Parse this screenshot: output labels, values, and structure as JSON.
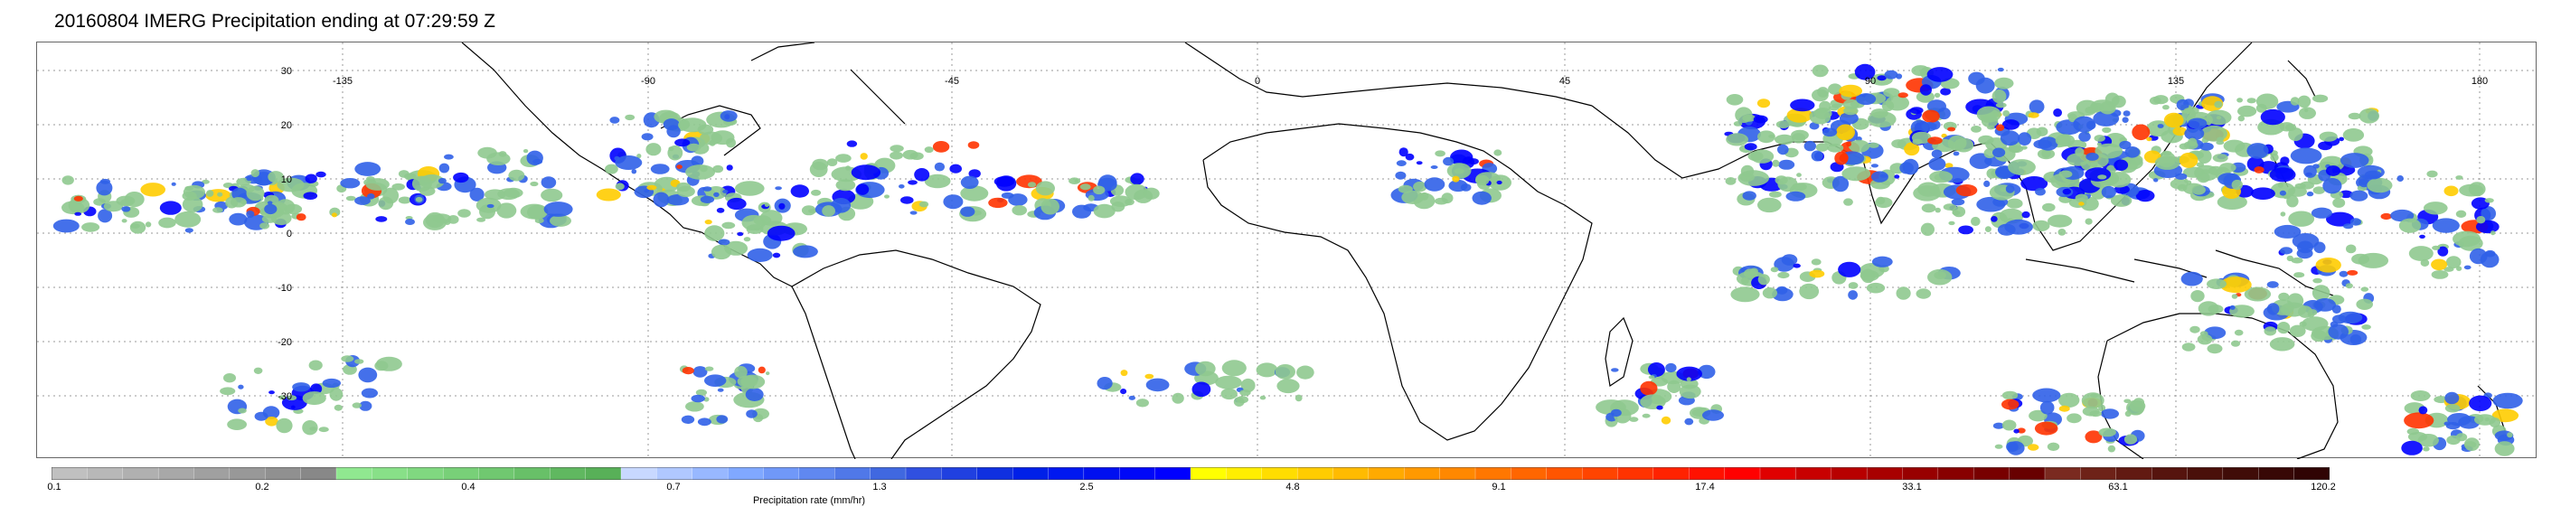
{
  "title": "20160804 IMERG Precipitation ending at 07:29:59 Z",
  "map": {
    "lon_ticks": [
      "-135",
      "-90",
      "-45",
      "0",
      "45",
      "90",
      "135",
      "180"
    ],
    "lat_ticks": [
      "30",
      "20",
      "10",
      "0",
      "-10",
      "-20",
      "-30"
    ],
    "graticule": "dotted",
    "land_outline_color": "#000000"
  },
  "colorbar": {
    "title": "Precipitation rate (mm/hr)",
    "labels": [
      "0.1",
      "0.2",
      "0.4",
      "0.7",
      "1.3",
      "2.5",
      "4.8",
      "9.1",
      "17.4",
      "33.1",
      "63.1",
      "120.2"
    ],
    "colors": [
      "#c0c0c0",
      "#b8b8b8",
      "#b0b0b0",
      "#a8a8a8",
      "#a0a0a0",
      "#989898",
      "#909090",
      "#888888",
      "#90e890",
      "#88e088",
      "#80d880",
      "#78d078",
      "#70c870",
      "#68c068",
      "#60b860",
      "#58b058",
      "#c8d8ff",
      "#b0c8ff",
      "#98b8ff",
      "#80a8ff",
      "#7098f8",
      "#6088f0",
      "#5078e8",
      "#4068e0",
      "#3050e0",
      "#2040e0",
      "#1030e0",
      "#0020e8",
      "#0018f0",
      "#0010f0",
      "#0008f8",
      "#0000ff",
      "#ffff00",
      "#ffee00",
      "#ffdd00",
      "#ffcc00",
      "#ffbb00",
      "#ffaa00",
      "#ff9900",
      "#ff8800",
      "#ff7700",
      "#ff6600",
      "#ff5500",
      "#ff4400",
      "#ff3300",
      "#ff2200",
      "#ff1100",
      "#ff0000",
      "#e00000",
      "#c80000",
      "#b80000",
      "#a80000",
      "#980000",
      "#880000",
      "#780000",
      "#680000",
      "#7a2a20",
      "#6e2218",
      "#621a12",
      "#56140e",
      "#4a100a",
      "#400c08",
      "#380806",
      "#300404"
    ]
  },
  "precip_colors": {
    "light": "#8fc98f",
    "moderate": "#3060e8",
    "heavy": "#0000ff",
    "intense": "#ffcc00",
    "extreme": "#ff3300"
  }
}
